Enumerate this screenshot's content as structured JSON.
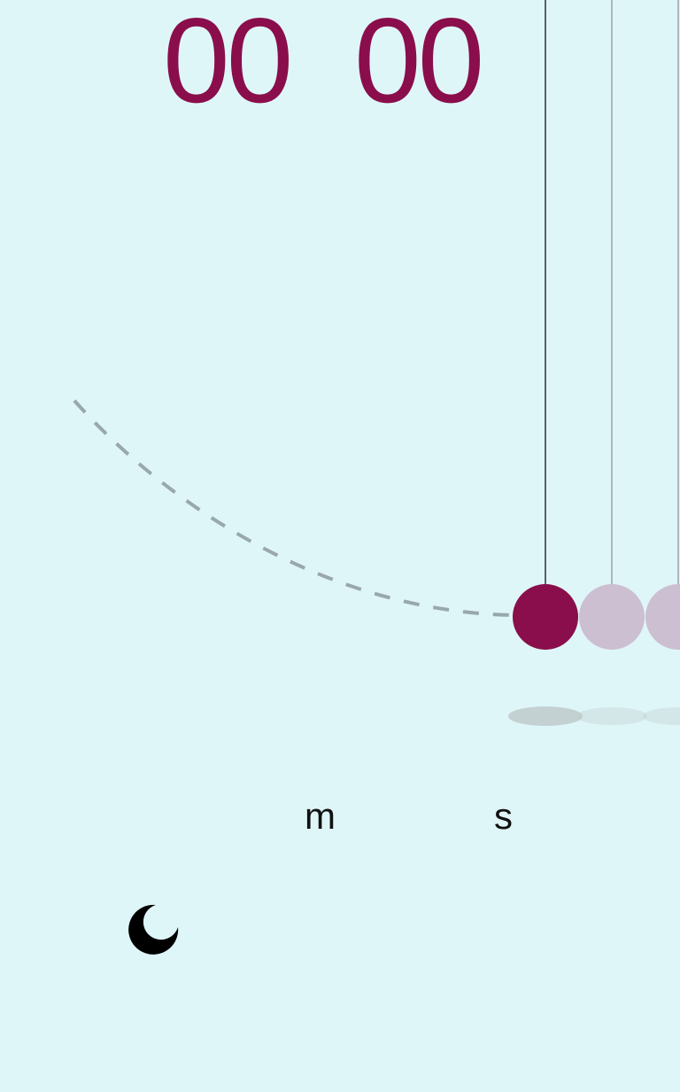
{
  "timer": {
    "minutes": "00",
    "minutes_unit": "m",
    "seconds": "00",
    "seconds_unit": "s"
  },
  "pendulum": {
    "ball_count": 3,
    "active_ball_index": 0
  },
  "controls": {
    "theme_toggle_icon": "moon-icon"
  },
  "colors": {
    "background": "#dff6f8",
    "active_ball": "#8a0e4b",
    "inactive_ball": "#ccbfd1",
    "string_active": "#56606b",
    "string_inactive": "#aab8bf",
    "swing_path": "#98a8ad",
    "shadow": "#bfcacb",
    "digits": "#8a0e4b",
    "units": "#111111",
    "icon": "#000000"
  }
}
